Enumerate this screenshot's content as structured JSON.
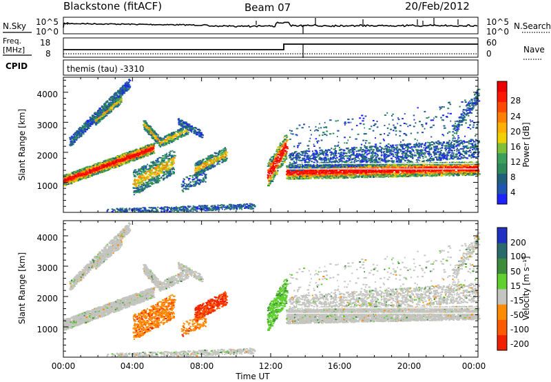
{
  "header": {
    "title": "Blackstone (fitACF)",
    "beam": "Beam 07",
    "date": "20/Feb/2012"
  },
  "noise_panel": {
    "left_label": "N.Sky",
    "left_ticks": [
      "10^5",
      "10^0"
    ],
    "right_label": "N.Search",
    "right_ticks": [
      "10^5",
      "10^0"
    ]
  },
  "freq_panel": {
    "left_label_line1": "Freq.",
    "left_label_line2": "[MHz]",
    "left_ticks": [
      "18",
      "8"
    ],
    "right_label": "Nave",
    "right_ticks": [
      "60",
      "0"
    ],
    "cpid_label": "CPID",
    "cpid_value": "themis (tau) -3310"
  },
  "chart_data": [
    {
      "type": "heatmap",
      "name": "power",
      "ylabel": "Slant Range [km]",
      "ylim": [
        0,
        4500
      ],
      "yticks": [
        "4000",
        "3000",
        "2000",
        "1000"
      ],
      "xlim_hours": [
        0,
        24
      ],
      "colorbar_label": "Power [dB]",
      "colorbar_ticks": [
        "28",
        "24",
        "20",
        "16",
        "12",
        "8",
        "4"
      ],
      "colors": [
        "#1e22ff",
        "#2055b0",
        "#21607a",
        "#2e8a5a",
        "#3aa05a",
        "#80c038",
        "#f0d000",
        "#ffb000",
        "#ff8000",
        "#ff4a00",
        "#ff1800",
        "#ee0000"
      ]
    },
    {
      "type": "heatmap",
      "name": "velocity",
      "ylabel": "Slant Range [km]",
      "ylim": [
        0,
        4500
      ],
      "yticks": [
        "4000",
        "3000",
        "2000",
        "1000"
      ],
      "xlim_hours": [
        0,
        24
      ],
      "colorbar_label": "Velocity [m s⁻¹]",
      "colorbar_ticks": [
        "200",
        "100",
        "50",
        "15",
        "-15",
        "-50",
        "-100",
        "-200"
      ],
      "colors": [
        "#2030c0",
        "#2a6a6a",
        "#3c8c3c",
        "#60d030",
        "#c4c4c0",
        "#ff8c00",
        "#ff5a00",
        "#f02000"
      ]
    }
  ],
  "x_axis": {
    "ticks": [
      "00:00",
      "04:00",
      "08:00",
      "12:00",
      "16:00",
      "20:00",
      "00:00"
    ],
    "label": "Time UT"
  }
}
